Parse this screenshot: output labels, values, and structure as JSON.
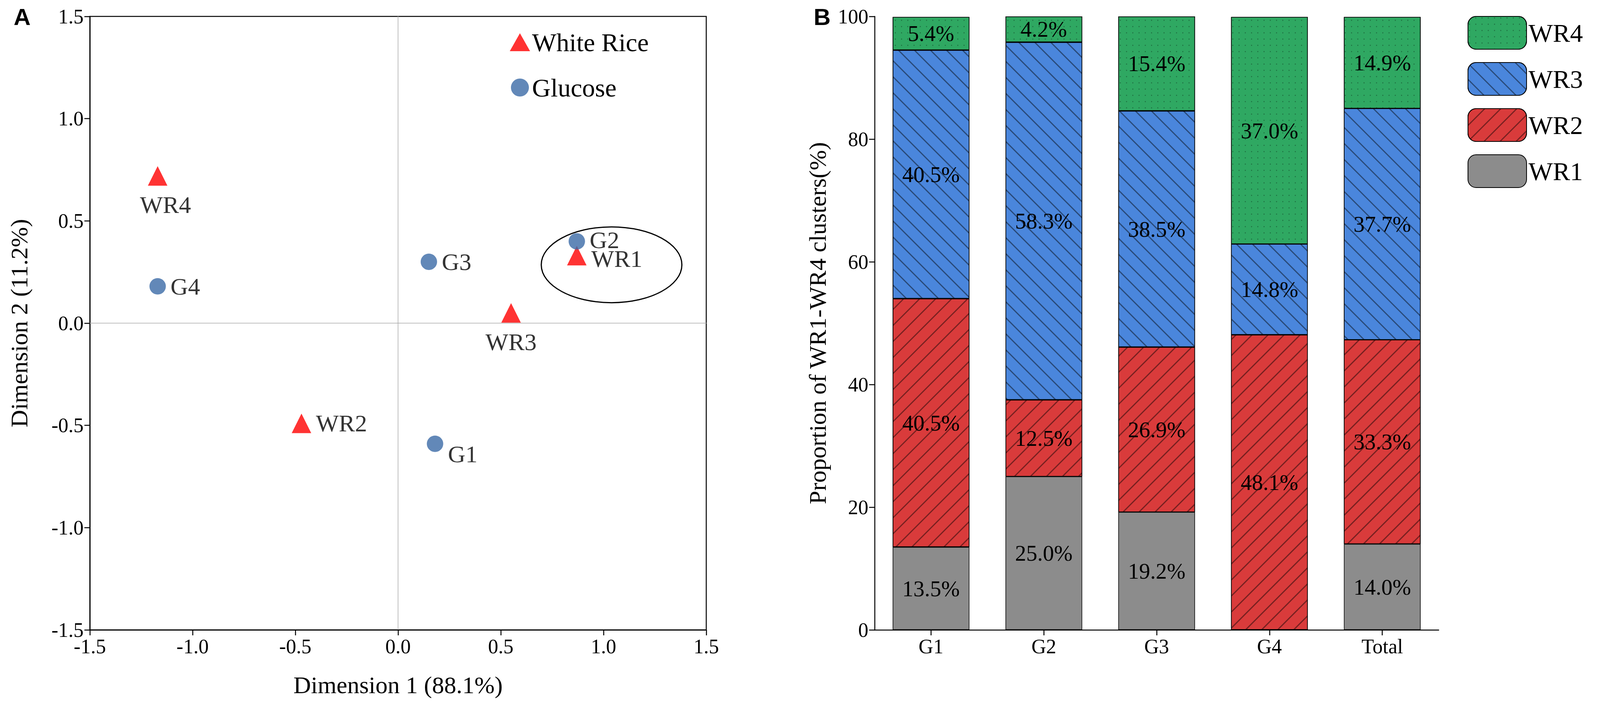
{
  "chart_data": [
    {
      "type": "scatter",
      "title": "A",
      "x_label": "Dimension 1 (88.1%)",
      "y_label": "Dimension 2 (11.2%)",
      "xlim": [
        -1.5,
        1.5
      ],
      "ylim": [
        -1.5,
        1.5
      ],
      "xticks": [
        -1.5,
        {
          "value": -1,
          "label": "-1.0"
        },
        -0.5,
        {
          "value": 0,
          "label": "0.0"
        },
        0.5,
        {
          "value": 1,
          "label": "1.0"
        },
        1.5
      ],
      "yticks": [
        -1.5,
        {
          "value": -1,
          "label": "-1.0"
        },
        -0.5,
        {
          "value": 0,
          "label": "0.0"
        },
        0.5,
        {
          "value": 1,
          "label": "1.0"
        },
        1.5
      ],
      "legend": "top-right",
      "series": [
        {
          "name": "White Rice",
          "color": "#ff0000",
          "marker": "triangle",
          "x": [
            0.87,
            -0.47,
            0.55,
            -1.17
          ],
          "values": [
            0.33,
            -0.49,
            0.05,
            0.72
          ],
          "point_labels": [
            "WR1",
            "WR2",
            "WR3",
            "WR4"
          ]
        },
        {
          "name": "Glucose",
          "color": "#3b6aa6",
          "marker": "circle",
          "x": [
            0.18,
            0.87,
            0.15,
            -1.17
          ],
          "values": [
            -0.59,
            0.4,
            0.3,
            0.18
          ],
          "point_labels": [
            "G1",
            "G2",
            "G3",
            "G4"
          ]
        }
      ]
    },
    {
      "type": "bar",
      "title": "B",
      "stacked": true,
      "data_labels": true,
      "y_label": "Proportion of WR1-WR4 clusters(%)",
      "categories": [
        "G1",
        "G2",
        "G3",
        "G4",
        "Total"
      ],
      "ylim": [
        0,
        100
      ],
      "yticks": [
        0,
        20,
        40,
        60,
        80,
        100
      ],
      "legend": "right",
      "series": [
        {
          "name": "WR1",
          "color": "#8c8c8c",
          "values": [
            13.5,
            25.0,
            19.2,
            0,
            14.0
          ],
          "value_labels": [
            "13.5%",
            "25.0%",
            "19.2%",
            null,
            "14.0%"
          ]
        },
        {
          "name": "WR2",
          "color": "#d93b3b",
          "values": [
            40.5,
            12.5,
            26.9,
            48.1,
            33.3
          ],
          "value_labels": [
            "40.5%",
            "12.5%",
            "26.9%",
            "48.1%",
            "33.3%"
          ]
        },
        {
          "name": "WR3",
          "color": "#4a86dc",
          "values": [
            40.5,
            58.3,
            38.5,
            14.8,
            37.7
          ],
          "value_labels": [
            "40.5%",
            "58.3%",
            "38.5%",
            "14.8%",
            "37.7%"
          ]
        },
        {
          "name": "WR4",
          "color": "#2fa862",
          "values": [
            5.4,
            4.2,
            15.4,
            37.0,
            14.9
          ],
          "value_labels": [
            "5.4%",
            "4.2%",
            "15.4%",
            "37.0%",
            "14.9%"
          ]
        }
      ]
    }
  ]
}
